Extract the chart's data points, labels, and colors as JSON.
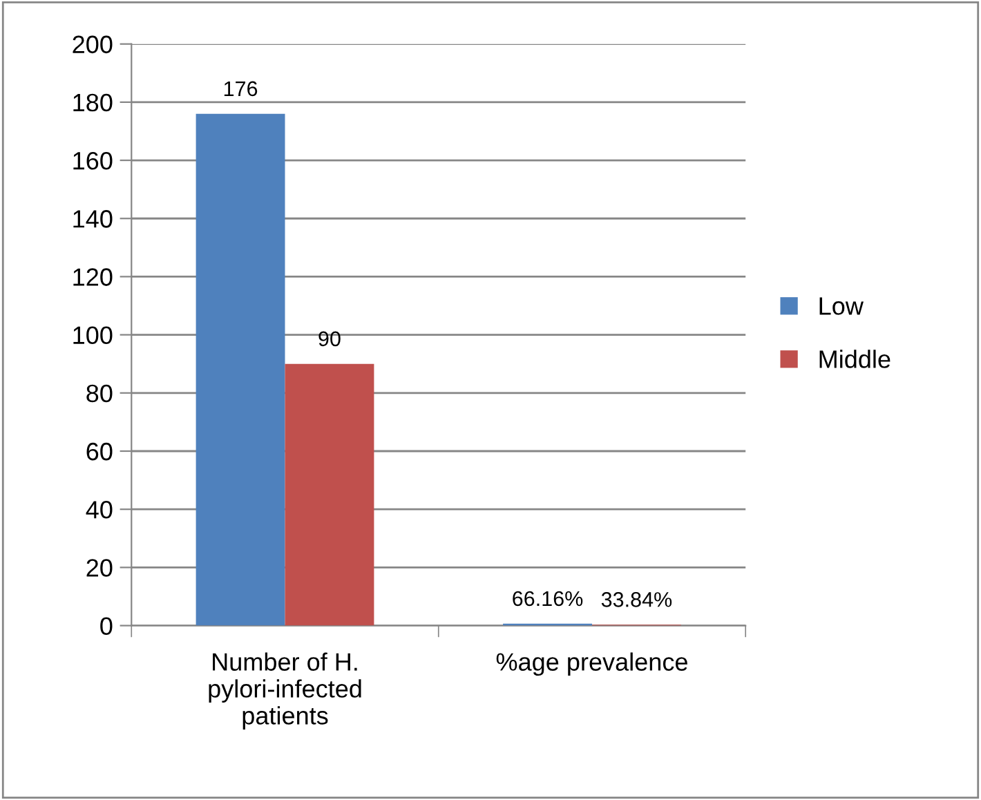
{
  "chart_data": {
    "type": "bar",
    "categories": [
      "Number of H.\npylori-infected\npatients",
      "%age prevalence"
    ],
    "series": [
      {
        "name": "Low",
        "color": "#4f81bd",
        "values": [
          176,
          0.6616
        ],
        "value_labels": [
          "176",
          "66.16%"
        ]
      },
      {
        "name": "Middle",
        "color": "#c0504d",
        "values": [
          90,
          0.3384
        ],
        "value_labels": [
          "90",
          "33.84%"
        ]
      }
    ],
    "ylim": [
      0,
      200
    ],
    "yticks": [
      0,
      20,
      40,
      60,
      80,
      100,
      120,
      140,
      160,
      180,
      200
    ],
    "grid": "y",
    "legend": "right"
  }
}
